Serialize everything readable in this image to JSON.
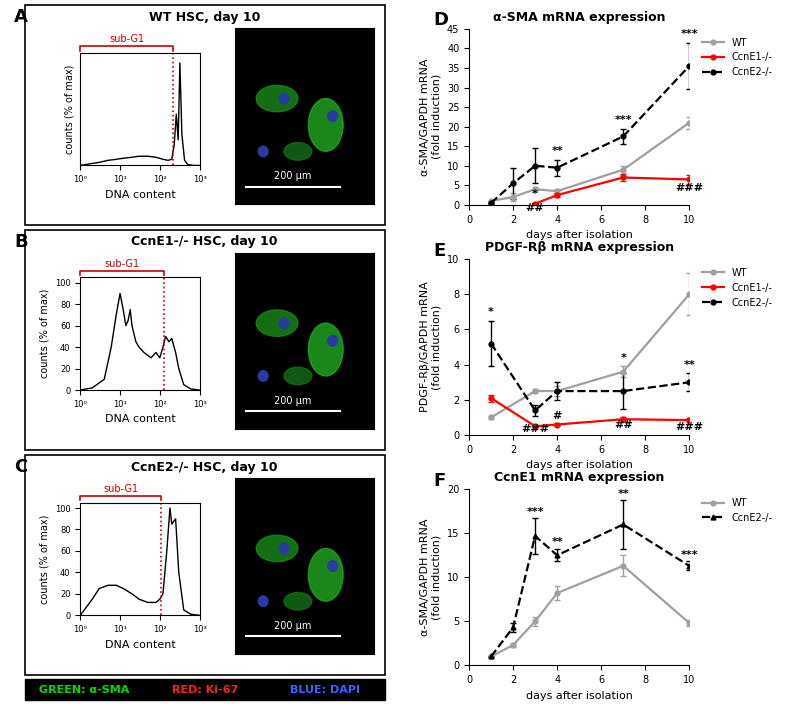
{
  "chart_data": [
    {
      "panel": "A",
      "type": "line",
      "title": "WT HSC, day 10",
      "x_label": "DNA content",
      "y_label": "counts (% of max)",
      "log": "x",
      "xlim": [
        1,
        1000
      ],
      "xticks": [
        {
          "value": 1,
          "label": "10⁰"
        },
        {
          "value": 10,
          "label": "10¹"
        },
        {
          "value": 100,
          "label": "10²"
        },
        {
          "value": 1000,
          "label": "10³"
        }
      ],
      "ylim": [
        0,
        110
      ],
      "tick_labels": "x",
      "color": "#000000",
      "x": [
        1,
        2,
        3,
        5,
        8,
        12,
        20,
        30,
        50,
        80,
        120,
        160,
        200,
        230,
        260,
        290,
        320,
        360,
        420,
        500,
        700,
        1000
      ],
      "values": [
        0,
        2,
        3,
        5,
        6,
        7,
        8,
        9,
        9,
        8,
        6,
        5,
        6,
        20,
        50,
        25,
        100,
        30,
        5,
        1,
        0,
        0
      ],
      "threshold": 220,
      "annotations": [
        {
          "text": "sub-G1",
          "color": "#cc0000"
        }
      ],
      "image": {
        "scale_bar": "200 μm"
      }
    },
    {
      "panel": "B",
      "type": "line",
      "title": "CcnE1-/- HSC, day 10",
      "x_label": "DNA content",
      "y_label": "counts (% of max)",
      "log": "x",
      "xlim": [
        1,
        1000
      ],
      "xticks": [
        {
          "value": 1,
          "label": "10⁰"
        },
        {
          "value": 10,
          "label": "10¹"
        },
        {
          "value": 100,
          "label": "10²"
        },
        {
          "value": 1000,
          "label": "10³"
        }
      ],
      "ylim": [
        0,
        105
      ],
      "yticks": [
        0,
        20,
        40,
        60,
        80,
        100
      ],
      "color": "#000000",
      "x": [
        1,
        2,
        4,
        6,
        8,
        10,
        12,
        14,
        16,
        18,
        20,
        25,
        30,
        40,
        60,
        80,
        100,
        120,
        140,
        170,
        200,
        250,
        300,
        400,
        600,
        1000
      ],
      "values": [
        0,
        2,
        10,
        40,
        70,
        90,
        75,
        60,
        65,
        75,
        60,
        45,
        40,
        35,
        30,
        35,
        30,
        40,
        50,
        45,
        48,
        35,
        20,
        5,
        1,
        0
      ],
      "threshold": 130,
      "annotations": [
        {
          "text": "sub-G1",
          "color": "#cc0000"
        }
      ],
      "image": {
        "scale_bar": "200 μm"
      }
    },
    {
      "panel": "C",
      "type": "line",
      "title": "CcnE2-/- HSC, day 10",
      "x_label": "DNA content",
      "y_label": "counts (% of max)",
      "log": "x",
      "xlim": [
        1,
        1000
      ],
      "xticks": [
        {
          "value": 1,
          "label": "10⁰"
        },
        {
          "value": 10,
          "label": "10¹"
        },
        {
          "value": 100,
          "label": "10²"
        },
        {
          "value": 1000,
          "label": "10³"
        }
      ],
      "ylim": [
        0,
        105
      ],
      "yticks": [
        0,
        20,
        40,
        60,
        80,
        100
      ],
      "color": "#000000",
      "x": [
        1,
        2,
        3,
        5,
        8,
        12,
        20,
        30,
        50,
        80,
        100,
        120,
        150,
        180,
        200,
        250,
        300,
        400,
        600,
        1000
      ],
      "values": [
        0,
        15,
        25,
        28,
        28,
        25,
        20,
        15,
        12,
        12,
        15,
        20,
        60,
        100,
        85,
        90,
        40,
        5,
        1,
        0
      ],
      "threshold": 110,
      "annotations": [
        {
          "text": "sub-G1",
          "color": "#cc0000"
        }
      ],
      "image": {
        "scale_bar": "200 μm"
      }
    },
    {
      "panel": "D",
      "type": "line",
      "title": "α-SMA mRNA expression",
      "x_label": "days after isolation",
      "y_label": "α-SMA/GAPDH mRNA\n(fold induction)",
      "xlim": [
        0,
        10
      ],
      "xticks": [
        0,
        2,
        4,
        6,
        8,
        10
      ],
      "ylim": [
        0,
        45
      ],
      "yticks": [
        0,
        5,
        10,
        15,
        20,
        25,
        30,
        35,
        40,
        45
      ],
      "legend": "upper left",
      "x": [
        1,
        2,
        3,
        4,
        7,
        10
      ],
      "series": [
        {
          "name": "WT",
          "color": "#a0a0a0",
          "line_style": "solid",
          "marker": "o",
          "values": [
            1,
            2,
            4,
            3.5,
            9,
            21
          ],
          "errors": [
            0,
            1,
            0.5,
            0.5,
            1,
            1.5
          ]
        },
        {
          "name": "CcnE1-/-",
          "color": "#ff0000",
          "line_style": "solid",
          "marker": "o",
          "values": [
            null,
            null,
            0.3,
            2.5,
            7,
            6.5
          ],
          "errors": [
            null,
            null,
            0.3,
            0.5,
            1,
            1.2
          ]
        },
        {
          "name": "CcnE2-/-",
          "color": "#000000",
          "line_style": "dashed",
          "marker": "o",
          "values": [
            0.5,
            5.5,
            10,
            9.5,
            17.5,
            35.5
          ],
          "errors": [
            0,
            4,
            4.5,
            2,
            2,
            6
          ]
        }
      ],
      "annotations": [
        {
          "text": "***",
          "x": 10,
          "y": 42.5
        },
        {
          "text": "***",
          "x": 7,
          "y": 20.5
        },
        {
          "text": "**",
          "x": 4,
          "y": 12.5
        },
        {
          "text": "*",
          "x": 3,
          "y": 1.5
        },
        {
          "text": "##",
          "x": 3,
          "y": -2
        },
        {
          "text": "###",
          "x": 10,
          "y": 3
        }
      ]
    },
    {
      "panel": "E",
      "type": "line",
      "title": "PDGF-Rβ mRNA expression",
      "x_label": "days after isolation",
      "y_label": "PDGF-Rβ/GAPDH mRNA\n(fold induction)",
      "xlim": [
        0,
        10
      ],
      "xticks": [
        0,
        2,
        4,
        6,
        8,
        10
      ],
      "ylim": [
        0,
        10
      ],
      "yticks": [
        0,
        2,
        4,
        6,
        8,
        10
      ],
      "legend": "upper left",
      "x": [
        1,
        3,
        4,
        7,
        10
      ],
      "series": [
        {
          "name": "WT",
          "color": "#a0a0a0",
          "line_style": "solid",
          "marker": "o",
          "values": [
            1,
            2.5,
            2.5,
            3.6,
            8
          ],
          "errors": [
            0.1,
            0.1,
            0.3,
            0.3,
            1.2
          ]
        },
        {
          "name": "CcnE1-/-",
          "color": "#ff0000",
          "line_style": "solid",
          "marker": "o",
          "values": [
            2.1,
            0.5,
            0.6,
            0.9,
            0.85
          ],
          "errors": [
            0.2,
            0.1,
            0.1,
            0.1,
            0.1
          ]
        },
        {
          "name": "CcnE2-/-",
          "color": "#000000",
          "line_style": "dashed",
          "marker": "o",
          "values": [
            5.2,
            1.4,
            2.5,
            2.5,
            3
          ],
          "errors": [
            1.3,
            0.3,
            0.5,
            1,
            0.5
          ]
        }
      ],
      "annotations": [
        {
          "text": "*",
          "x": 1,
          "y": 6.7
        },
        {
          "text": "###",
          "x": 3,
          "y": 0.05
        },
        {
          "text": "#",
          "x": 4,
          "y": 0.8
        },
        {
          "text": "*",
          "x": 7,
          "y": 4.1
        },
        {
          "text": "##",
          "x": 7,
          "y": 0.3
        },
        {
          "text": "**",
          "x": 10,
          "y": 3.7
        },
        {
          "text": "###",
          "x": 10,
          "y": 0.2
        }
      ]
    },
    {
      "panel": "F",
      "type": "line",
      "title": "CcnE1 mRNA expression",
      "x_label": "days after isolation",
      "y_label": "α-SMA/GAPDH mRNA\n(fold induction)",
      "xlim": [
        0,
        10
      ],
      "xticks": [
        0,
        2,
        4,
        6,
        8,
        10
      ],
      "ylim": [
        0,
        20
      ],
      "yticks": [
        0,
        5,
        10,
        15,
        20
      ],
      "legend": "upper left",
      "x": [
        1,
        2,
        3,
        4,
        7,
        10
      ],
      "series": [
        {
          "name": "WT",
          "color": "#a0a0a0",
          "line_style": "solid",
          "marker": "o",
          "values": [
            1,
            2.3,
            5,
            8.2,
            11.3,
            4.8
          ],
          "errors": [
            0.1,
            0.2,
            0.5,
            0.8,
            1.2,
            0.3
          ]
        },
        {
          "name": "CcnE2-/-",
          "color": "#000000",
          "line_style": "dashed",
          "marker": "^",
          "values": [
            1,
            4.3,
            14.7,
            12.5,
            16,
            11.3
          ],
          "errors": [
            0.1,
            0.5,
            2,
            0.7,
            2.8,
            0.5
          ]
        }
      ],
      "annotations": [
        {
          "text": "***",
          "x": 3,
          "y": 16.9
        },
        {
          "text": "**",
          "x": 4,
          "y": 13.4
        },
        {
          "text": "**",
          "x": 7,
          "y": 18.9
        },
        {
          "text": "***",
          "x": 10,
          "y": 12
        }
      ]
    }
  ],
  "footer": {
    "items": [
      {
        "text": "GREEN: α-SMA",
        "color": "#00dd00"
      },
      {
        "text": "RED: Ki-67",
        "color": "#ff2020"
      },
      {
        "text": "BLUE: DAPI",
        "color": "#4060ff"
      }
    ]
  }
}
